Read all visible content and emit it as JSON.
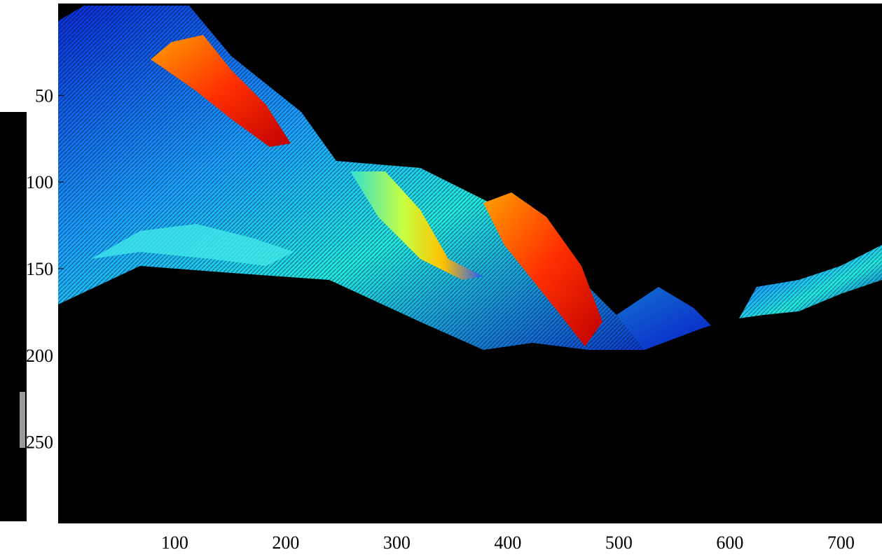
{
  "chart_data": {
    "type": "image",
    "xlim": [
      -5,
      737
    ],
    "ylim": [
      -3,
      297
    ],
    "y_reversed": true,
    "xticks": [
      100,
      200,
      300,
      400,
      500,
      600,
      700
    ],
    "yticks": [
      50,
      100,
      150,
      200,
      250
    ]
  }
}
